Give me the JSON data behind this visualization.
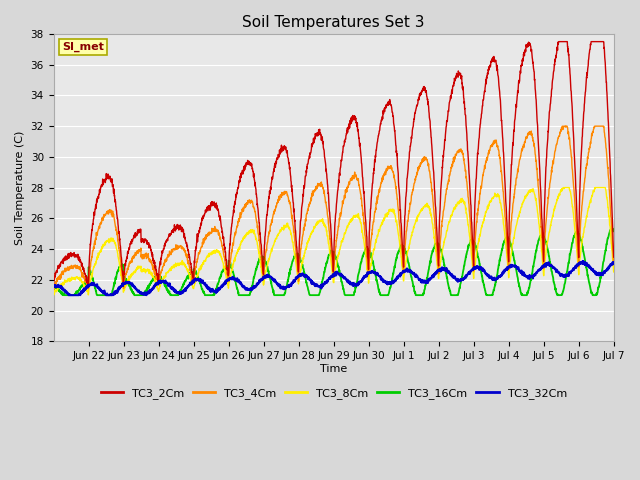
{
  "title": "Soil Temperatures Set 3",
  "ylabel": "Soil Temperature (C)",
  "xlabel": "Time",
  "ylim": [
    18,
    38
  ],
  "plot_bg_color": "#e8e8e8",
  "fig_bg_color": "#d8d8d8",
  "series": {
    "TC3_2Cm": {
      "color": "#cc0000",
      "lw": 1.0
    },
    "TC3_4Cm": {
      "color": "#ff8800",
      "lw": 1.0
    },
    "TC3_8Cm": {
      "color": "#ffee00",
      "lw": 1.0
    },
    "TC3_16Cm": {
      "color": "#00cc00",
      "lw": 1.3
    },
    "TC3_32Cm": {
      "color": "#0000cc",
      "lw": 1.5
    }
  },
  "annotation_text": "SI_met",
  "annotation_box_color": "#ffffaa",
  "annotation_box_edgecolor": "#aaaa00",
  "annotation_text_color": "#880000",
  "n_days": 16,
  "samples_per_day": 144,
  "yticks": [
    18,
    20,
    22,
    24,
    26,
    28,
    30,
    32,
    34,
    36,
    38
  ],
  "grid_color": "#ffffff",
  "tick_positions_days": [
    1,
    2,
    3,
    4,
    5,
    6,
    7,
    8,
    9,
    10,
    11,
    12,
    13,
    14,
    15,
    16
  ],
  "tick_labels": [
    "Jun 22",
    "Jun 23",
    "Jun 24",
    "Jun 25",
    "Jun 26",
    "Jun 27",
    "Jun 28",
    "Jun 29",
    "Jun 30",
    "Jul 1",
    "Jul 2",
    "Jul 3",
    "Jul 4",
    "Jul 5",
    "Jul 6",
    "Jul 7"
  ]
}
